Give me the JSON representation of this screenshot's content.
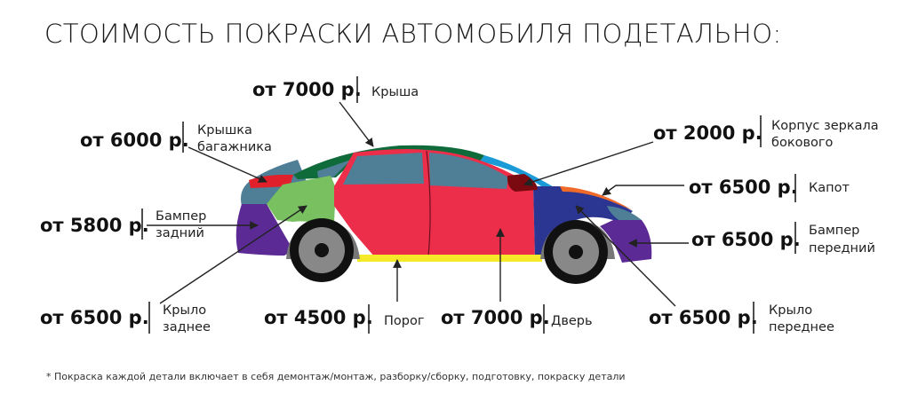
{
  "title": "СТОИМОСТЬ ПОКРАСКИ АВТОМОБИЛЯ ПОДЕТАЛЬНО:",
  "labels": {
    "roof": {
      "price": "от 7000 р.",
      "part": [
        "Крыша"
      ]
    },
    "trunk_lid": {
      "price": "от 6000 р.",
      "part": [
        "Крышка",
        "багажника"
      ]
    },
    "rear_bumper": {
      "price": "от 5800 р.",
      "part": [
        "Бампер",
        "задний"
      ]
    },
    "rear_fender": {
      "price": "от 6500 р.",
      "part": [
        "Крыло",
        "заднее"
      ]
    },
    "sill": {
      "price": "от 4500 р.",
      "part": [
        "Порог"
      ]
    },
    "door": {
      "price": "от 7000 р.",
      "part": [
        "Дверь"
      ]
    },
    "mirror": {
      "price": "от 2000 р.",
      "part": [
        "Корпус зеркала",
        "бокового"
      ]
    },
    "hood": {
      "price": "от 6500 р.",
      "part": [
        "Капот"
      ]
    },
    "front_bumper": {
      "price": "от 6500 р.",
      "part": [
        "Бампер",
        "передний"
      ]
    },
    "front_fender": {
      "price": "от 6500 р.",
      "part": [
        "Крыло",
        "переднее"
      ]
    }
  },
  "footnote": "* Покраска каждой детали включает в себя демонтаж/монтаж, разборку/сборку, подготовку, покраску детали",
  "colors": {
    "roof": "#0f6b3a",
    "trunk_lid": "#e0202a",
    "rear_bumper": "#5b2a94",
    "rear_fender": "#78c060",
    "door": "#ec2e4a",
    "sill": "#f4ea2a",
    "mirror": "#7a0a10",
    "hood": "#f06a2a",
    "front_fender": "#2b3592",
    "front_bumper": "#5b2a94",
    "glass": "#4f7f96",
    "pillar": "#1a9ad6"
  }
}
